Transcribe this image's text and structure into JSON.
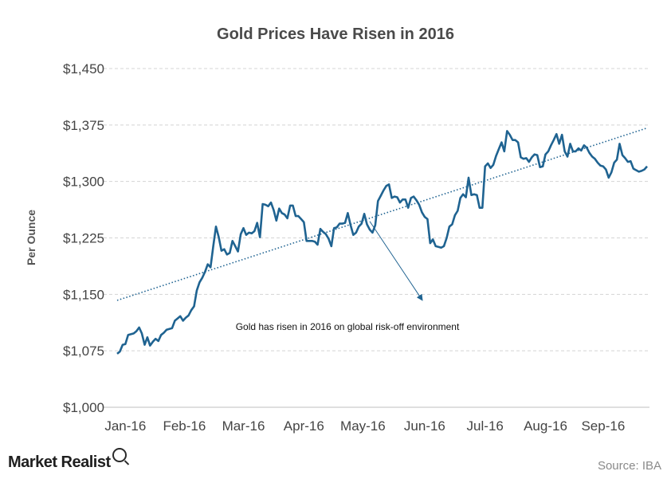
{
  "chart_data": {
    "type": "line",
    "title": "Gold Prices Have Risen in 2016",
    "ylabel": "Per Ounce",
    "xlabel": "",
    "ylim": [
      1000,
      1450
    ],
    "yticks": [
      "$1,000",
      "$1,075",
      "$1,150",
      "$1,225",
      "$1,300",
      "$1,375",
      "$1,450"
    ],
    "ytick_values": [
      1000,
      1075,
      1150,
      1225,
      1300,
      1375,
      1450
    ],
    "xticks": [
      "Jan-16",
      "Feb-16",
      "Mar-16",
      "Apr-16",
      "May-16",
      "Jun-16",
      "Jul-16",
      "Aug-16",
      "Sep-16"
    ],
    "grid": true,
    "series": [
      {
        "color": "#1f6391",
        "values": [
          [
            0,
            1071
          ],
          [
            1,
            1074
          ],
          [
            2,
            1083
          ],
          [
            3,
            1084
          ],
          [
            4,
            1096
          ],
          [
            6,
            1098
          ],
          [
            7,
            1101
          ],
          [
            8,
            1106
          ],
          [
            9,
            1098
          ],
          [
            10,
            1083
          ],
          [
            11,
            1093
          ],
          [
            12,
            1082
          ],
          [
            13,
            1087
          ],
          [
            14,
            1091
          ],
          [
            15,
            1088
          ],
          [
            16,
            1096
          ],
          [
            17,
            1099
          ],
          [
            18,
            1103
          ],
          [
            20,
            1105
          ],
          [
            21,
            1115
          ],
          [
            22,
            1118
          ],
          [
            23,
            1121
          ],
          [
            24,
            1115
          ],
          [
            25,
            1119
          ],
          [
            26,
            1122
          ],
          [
            27,
            1129
          ],
          [
            28,
            1134
          ],
          [
            29,
            1155
          ],
          [
            30,
            1166
          ],
          [
            31,
            1172
          ],
          [
            32,
            1180
          ],
          [
            33,
            1190
          ],
          [
            34,
            1186
          ],
          [
            35,
            1214
          ],
          [
            36,
            1240
          ],
          [
            37,
            1226
          ],
          [
            38,
            1208
          ],
          [
            39,
            1210
          ],
          [
            40,
            1203
          ],
          [
            41,
            1205
          ],
          [
            42,
            1221
          ],
          [
            43,
            1214
          ],
          [
            44,
            1207
          ],
          [
            45,
            1230
          ],
          [
            46,
            1238
          ],
          [
            47,
            1229
          ],
          [
            48,
            1232
          ],
          [
            49,
            1231
          ],
          [
            50,
            1234
          ],
          [
            51,
            1245
          ],
          [
            52,
            1226
          ],
          [
            53,
            1270
          ],
          [
            54,
            1269
          ],
          [
            55,
            1267
          ],
          [
            56,
            1272
          ],
          [
            57,
            1262
          ],
          [
            58,
            1248
          ],
          [
            59,
            1264
          ],
          [
            60,
            1258
          ],
          [
            61,
            1256
          ],
          [
            62,
            1251
          ],
          [
            63,
            1268
          ],
          [
            64,
            1268
          ],
          [
            65,
            1254
          ],
          [
            66,
            1254
          ],
          [
            67,
            1250
          ],
          [
            68,
            1246
          ],
          [
            69,
            1221
          ],
          [
            70,
            1221
          ],
          [
            71,
            1221
          ],
          [
            72,
            1220
          ],
          [
            73,
            1216
          ],
          [
            74,
            1237
          ],
          [
            75,
            1233
          ],
          [
            76,
            1230
          ],
          [
            77,
            1224
          ],
          [
            78,
            1214
          ],
          [
            79,
            1238
          ],
          [
            80,
            1239
          ],
          [
            81,
            1244
          ],
          [
            82,
            1244
          ],
          [
            83,
            1245
          ],
          [
            84,
            1258
          ],
          [
            85,
            1242
          ],
          [
            86,
            1229
          ],
          [
            87,
            1232
          ],
          [
            88,
            1240
          ],
          [
            89,
            1244
          ],
          [
            90,
            1257
          ],
          [
            91,
            1243
          ],
          [
            92,
            1236
          ],
          [
            93,
            1232
          ],
          [
            94,
            1242
          ],
          [
            95,
            1274
          ],
          [
            96,
            1281
          ],
          [
            97,
            1288
          ],
          [
            98,
            1294
          ],
          [
            99,
            1296
          ],
          [
            100,
            1278
          ],
          [
            101,
            1280
          ],
          [
            102,
            1279
          ],
          [
            103,
            1272
          ],
          [
            104,
            1276
          ],
          [
            105,
            1276
          ],
          [
            106,
            1265
          ],
          [
            107,
            1278
          ],
          [
            108,
            1280
          ],
          [
            109,
            1275
          ],
          [
            110,
            1269
          ],
          [
            111,
            1259
          ],
          [
            112,
            1253
          ],
          [
            113,
            1250
          ],
          [
            114,
            1218
          ],
          [
            115,
            1223
          ],
          [
            116,
            1214
          ],
          [
            117,
            1213
          ],
          [
            118,
            1212
          ],
          [
            119,
            1214
          ],
          [
            120,
            1225
          ],
          [
            121,
            1240
          ],
          [
            122,
            1243
          ],
          [
            123,
            1255
          ],
          [
            124,
            1261
          ],
          [
            125,
            1278
          ],
          [
            126,
            1283
          ],
          [
            127,
            1279
          ],
          [
            128,
            1305
          ],
          [
            129,
            1282
          ],
          [
            130,
            1283
          ],
          [
            131,
            1282
          ],
          [
            132,
            1265
          ],
          [
            133,
            1265
          ],
          [
            134,
            1320
          ],
          [
            135,
            1324
          ],
          [
            136,
            1318
          ],
          [
            137,
            1322
          ],
          [
            138,
            1334
          ],
          [
            139,
            1343
          ],
          [
            140,
            1352
          ],
          [
            141,
            1340
          ],
          [
            142,
            1367
          ],
          [
            143,
            1362
          ],
          [
            144,
            1355
          ],
          [
            145,
            1355
          ],
          [
            146,
            1352
          ],
          [
            147,
            1332
          ],
          [
            148,
            1330
          ],
          [
            149,
            1331
          ],
          [
            150,
            1326
          ],
          [
            151,
            1332
          ],
          [
            152,
            1336
          ],
          [
            153,
            1335
          ],
          [
            154,
            1319
          ],
          [
            155,
            1320
          ],
          [
            156,
            1336
          ],
          [
            157,
            1340
          ],
          [
            158,
            1348
          ],
          [
            159,
            1355
          ],
          [
            160,
            1363
          ],
          [
            161,
            1350
          ],
          [
            162,
            1362
          ],
          [
            163,
            1340
          ],
          [
            164,
            1333
          ],
          [
            165,
            1350
          ],
          [
            166,
            1340
          ],
          [
            167,
            1340
          ],
          [
            168,
            1344
          ],
          [
            169,
            1341
          ],
          [
            170,
            1348
          ],
          [
            171,
            1345
          ],
          [
            172,
            1338
          ],
          [
            173,
            1333
          ],
          [
            174,
            1330
          ],
          [
            175,
            1325
          ],
          [
            176,
            1321
          ],
          [
            177,
            1320
          ],
          [
            178,
            1316
          ],
          [
            179,
            1305
          ],
          [
            180,
            1312
          ],
          [
            181,
            1325
          ],
          [
            182,
            1329
          ],
          [
            183,
            1350
          ],
          [
            184,
            1335
          ],
          [
            185,
            1331
          ],
          [
            186,
            1326
          ],
          [
            187,
            1327
          ],
          [
            188,
            1317
          ],
          [
            189,
            1315
          ],
          [
            190,
            1313
          ],
          [
            191,
            1314
          ],
          [
            192,
            1316
          ],
          [
            193,
            1320
          ]
        ]
      }
    ],
    "trendline": {
      "start": [
        0,
        1142
      ],
      "end": [
        193,
        1371
      ],
      "color": "#1f6391",
      "style": "dotted"
    },
    "x_tick_positions": [
      3,
      24.5,
      46,
      68,
      89.5,
      112,
      134,
      156,
      177
    ],
    "x_range": [
      0,
      193
    ],
    "annotation": {
      "text": "Gold has risen in 2016 on global risk-off environment",
      "arrow_from": [
        92,
        1247
      ],
      "arrow_to": [
        111,
        1143
      ]
    }
  },
  "footer": {
    "brand": "Market Realist",
    "source": "Source: IBA"
  }
}
